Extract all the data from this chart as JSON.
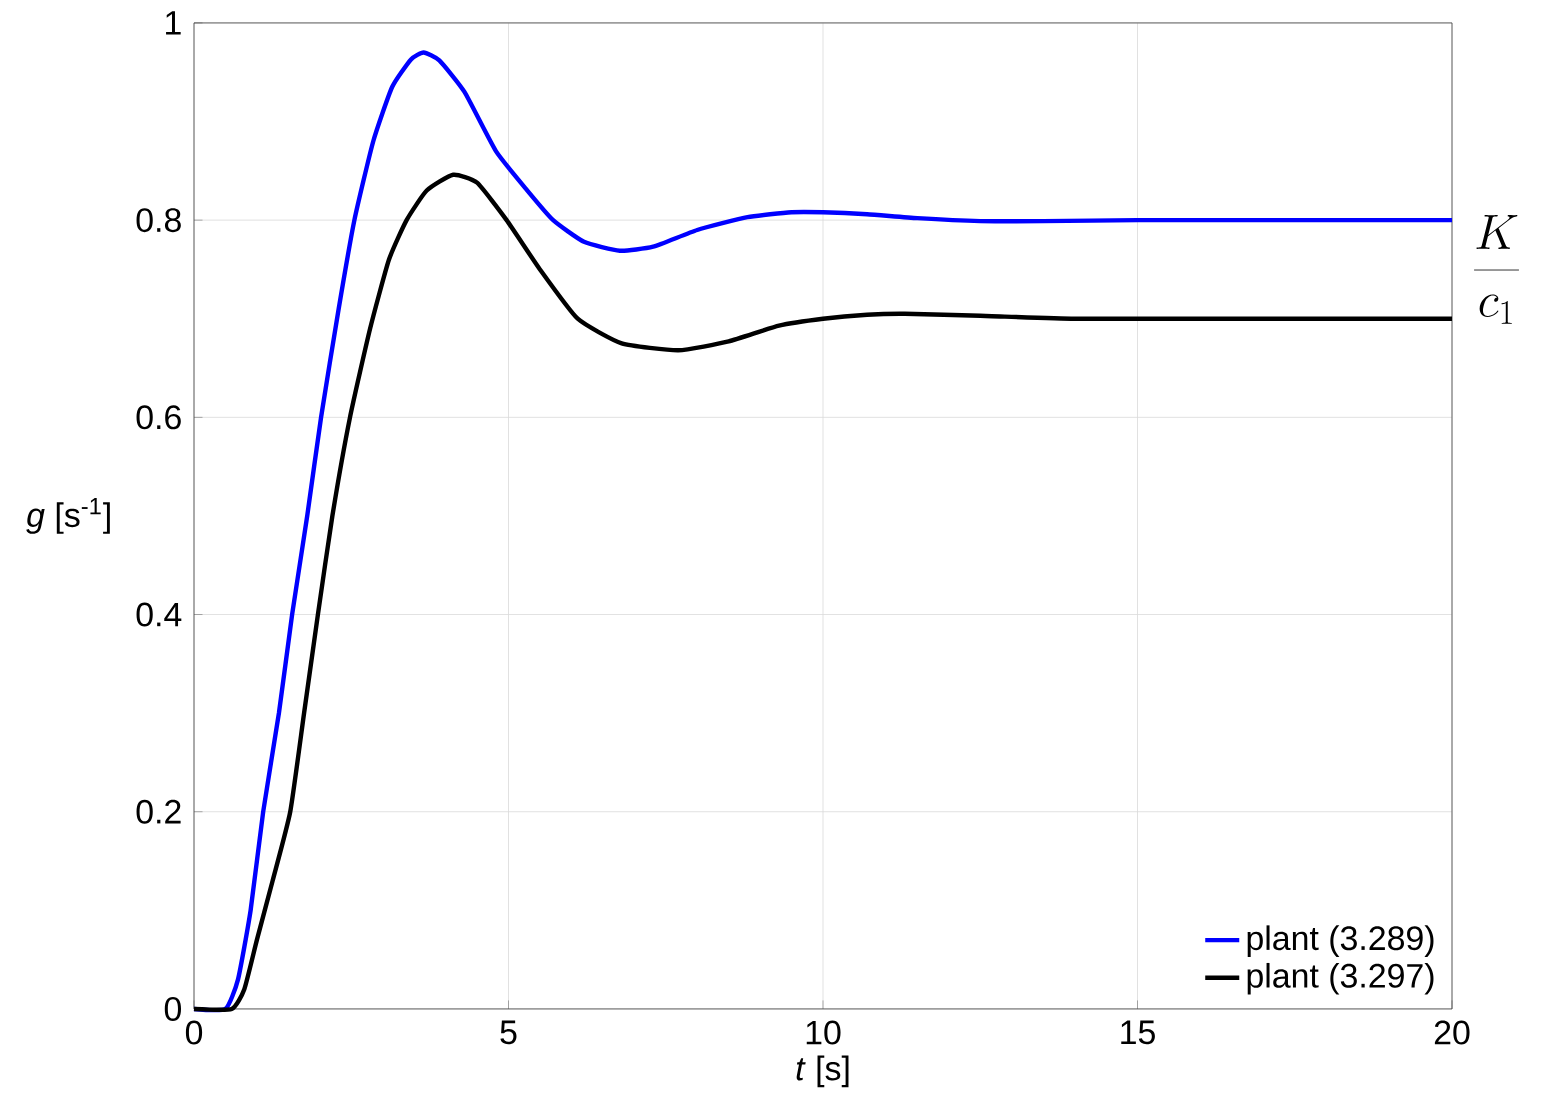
{
  "chart_data": {
    "type": "line",
    "xlabel": "*t* [s]",
    "ylabel": "*g* [s$^{-1}$]",
    "xlim": [
      0,
      20
    ],
    "ylim": [
      0,
      1
    ],
    "xticks": [
      0,
      5,
      10,
      15,
      20
    ],
    "yticks": [
      0,
      0.2,
      0.4,
      0.6,
      0.8,
      1
    ],
    "grid": true,
    "legend": "bottom right",
    "line_style": "solid",
    "marker": "none",
    "annotations": [
      "\\frac{K}{c_1}"
    ],
    "series": [
      {
        "name": "plant (3.289)",
        "color": "#0000ff",
        "x": [
          0,
          0.5,
          0.7,
          0.9,
          1.1,
          1.35,
          1.56,
          1.8,
          2.02,
          2.3,
          2.55,
          2.85,
          3.15,
          3.45,
          3.65,
          3.9,
          4.3,
          4.8,
          5.3,
          5.71,
          6.2,
          6.77,
          7.3,
          8,
          8.8,
          9.5,
          10,
          10.7,
          11.5,
          12.5,
          13.5,
          15,
          17,
          20
        ],
        "values": [
          0,
          0,
          0.03,
          0.1,
          0.2,
          0.3,
          0.4,
          0.5,
          0.6,
          0.71,
          0.8,
          0.88,
          0.935,
          0.963,
          0.97,
          0.962,
          0.93,
          0.87,
          0.83,
          0.8,
          0.778,
          0.769,
          0.773,
          0.79,
          0.803,
          0.808,
          0.808,
          0.806,
          0.802,
          0.799,
          0.799,
          0.8,
          0.8,
          0.8
        ]
      },
      {
        "name": "plant (3.297)",
        "color": "#000000",
        "x": [
          0,
          0.6,
          0.8,
          1.0,
          1.25,
          1.53,
          1.75,
          1.97,
          2.2,
          2.48,
          2.8,
          3.1,
          3.38,
          3.7,
          4.12,
          4.5,
          4.97,
          5.5,
          6.1,
          6.8,
          7.7,
          8.5,
          9.3,
          10,
          10.7,
          11.3,
          12.5,
          14,
          16,
          20
        ],
        "values": [
          0,
          0,
          0.02,
          0.07,
          0.13,
          0.2,
          0.3,
          0.4,
          0.5,
          0.6,
          0.69,
          0.76,
          0.8,
          0.83,
          0.846,
          0.838,
          0.8,
          0.75,
          0.7,
          0.675,
          0.668,
          0.677,
          0.693,
          0.7,
          0.704,
          0.705,
          0.703,
          0.7,
          0.7,
          0.7
        ]
      }
    ]
  }
}
